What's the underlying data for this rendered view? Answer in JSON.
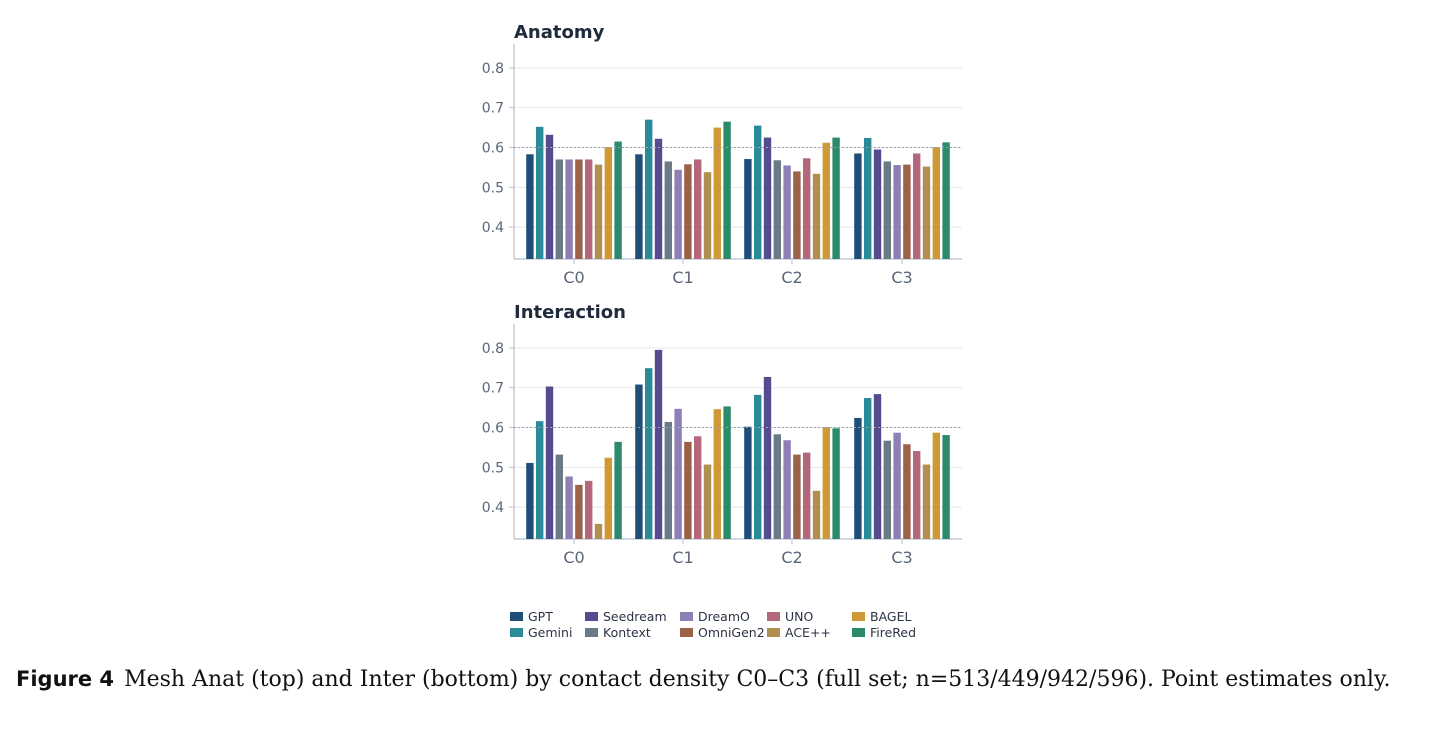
{
  "chart_data": [
    {
      "type": "bar",
      "title": "Anatomy",
      "categories": [
        "C0",
        "C1",
        "C2",
        "C3"
      ],
      "ylim": [
        0.32,
        0.86
      ],
      "yticks": [
        "0.4",
        "0.5",
        "0.6",
        "0.7",
        "0.8"
      ],
      "reference_line": 0.6,
      "grid": true,
      "series": [
        {
          "name": "GPT",
          "values": [
            0.583,
            0.583,
            0.571,
            0.585
          ]
        },
        {
          "name": "Gemini",
          "values": [
            0.652,
            0.67,
            0.655,
            0.624
          ]
        },
        {
          "name": "Seedream",
          "values": [
            0.632,
            0.622,
            0.625,
            0.595
          ]
        },
        {
          "name": "Kontext",
          "values": [
            0.57,
            0.565,
            0.568,
            0.565
          ]
        },
        {
          "name": "DreamO",
          "values": [
            0.57,
            0.544,
            0.555,
            0.556
          ]
        },
        {
          "name": "OmniGen2",
          "values": [
            0.57,
            0.558,
            0.54,
            0.557
          ]
        },
        {
          "name": "UNO",
          "values": [
            0.57,
            0.57,
            0.573,
            0.585
          ]
        },
        {
          "name": "ACE++",
          "values": [
            0.557,
            0.538,
            0.534,
            0.552
          ]
        },
        {
          "name": "BAGEL",
          "values": [
            0.601,
            0.65,
            0.612,
            0.601
          ]
        },
        {
          "name": "FireRed",
          "values": [
            0.615,
            0.665,
            0.625,
            0.613
          ]
        }
      ]
    },
    {
      "type": "bar",
      "title": "Interaction",
      "categories": [
        "C0",
        "C1",
        "C2",
        "C3"
      ],
      "ylim": [
        0.32,
        0.86
      ],
      "yticks": [
        "0.4",
        "0.5",
        "0.6",
        "0.7",
        "0.8"
      ],
      "reference_line": 0.6,
      "grid": true,
      "series": [
        {
          "name": "GPT",
          "values": [
            0.511,
            0.708,
            0.602,
            0.624
          ]
        },
        {
          "name": "Gemini",
          "values": [
            0.616,
            0.749,
            0.682,
            0.674
          ]
        },
        {
          "name": "Seedream",
          "values": [
            0.703,
            0.795,
            0.727,
            0.684
          ]
        },
        {
          "name": "Kontext",
          "values": [
            0.532,
            0.614,
            0.583,
            0.567
          ]
        },
        {
          "name": "DreamO",
          "values": [
            0.477,
            0.647,
            0.568,
            0.587
          ]
        },
        {
          "name": "OmniGen2",
          "values": [
            0.456,
            0.564,
            0.532,
            0.558
          ]
        },
        {
          "name": "UNO",
          "values": [
            0.466,
            0.578,
            0.537,
            0.541
          ]
        },
        {
          "name": "ACE++",
          "values": [
            0.358,
            0.507,
            0.441,
            0.507
          ]
        },
        {
          "name": "BAGEL",
          "values": [
            0.524,
            0.646,
            0.601,
            0.587
          ]
        },
        {
          "name": "FireRed",
          "values": [
            0.564,
            0.653,
            0.598,
            0.581
          ]
        }
      ]
    }
  ],
  "colors": {
    "GPT": "#1f4e79",
    "Gemini": "#2a8a98",
    "Seedream": "#574b90",
    "Kontext": "#6a7a86",
    "DreamO": "#8e80b4",
    "OmniGen2": "#9b6248",
    "UNO": "#b3677a",
    "ACE++": "#b09050",
    "BAGEL": "#cf9a35",
    "FireRed": "#2b8a6c"
  },
  "legend": {
    "placement": "bottom",
    "items": [
      "GPT",
      "Gemini",
      "Seedream",
      "Kontext",
      "DreamO",
      "OmniGen2",
      "UNO",
      "ACE++",
      "BAGEL",
      "FireRed"
    ]
  },
  "caption": {
    "label": "Figure 4",
    "text": "Mesh Anat (top) and Inter (bottom) by contact density C0–C3 (full set; n=513/449/942/596). Point estimates only."
  }
}
